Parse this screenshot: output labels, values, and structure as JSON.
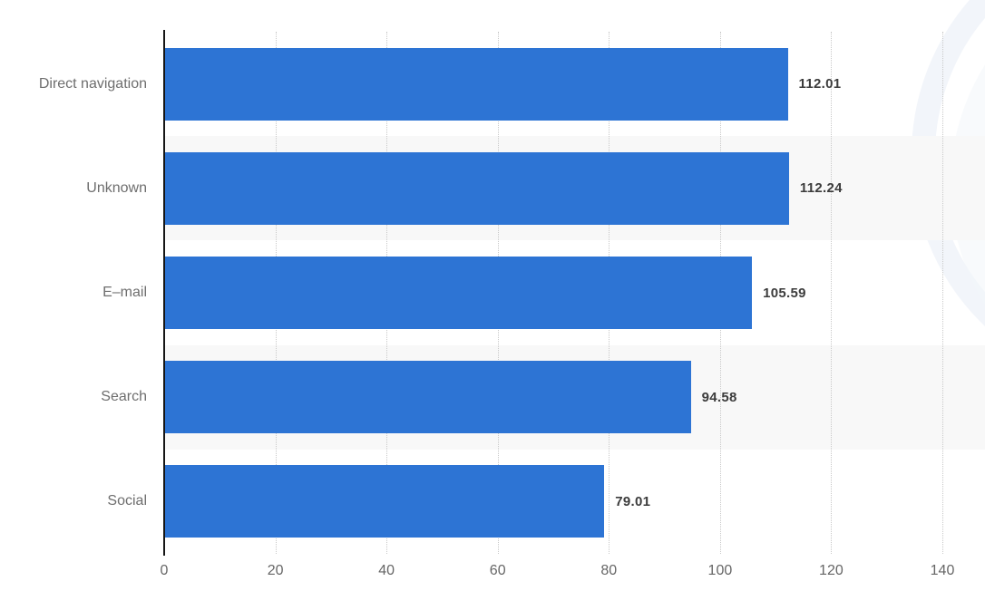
{
  "chart_data": {
    "type": "bar",
    "orientation": "horizontal",
    "title": "",
    "xlabel": "",
    "ylabel": "",
    "categories": [
      "Direct navigation",
      "Unknown",
      "E–mail",
      "Search",
      "Social"
    ],
    "values": [
      112.01,
      112.24,
      105.59,
      94.58,
      79.01
    ],
    "value_labels": [
      "112.01",
      "112.24",
      "105.59",
      "94.58",
      "79.01"
    ],
    "xlim": [
      0,
      140
    ],
    "x_ticks": [
      0,
      20,
      40,
      60,
      80,
      100,
      120,
      140
    ],
    "x_tick_labels": [
      "0",
      "20",
      "40",
      "60",
      "80",
      "100",
      "120",
      "140"
    ],
    "grid": "vertical-dotted",
    "legend_position": "none",
    "striped_rows": [
      1,
      3
    ],
    "colors": {
      "bar": "#2d74d4",
      "row_stripe": "#f8f8f8",
      "gridline": "#c9c9c9",
      "axis_line": "#161616",
      "category_label": "#6e6e6e",
      "tick_label": "#666666",
      "value_label": "#3c3c3c",
      "background": "#ffffff",
      "watermark_ring": "#f2f5fa"
    }
  }
}
